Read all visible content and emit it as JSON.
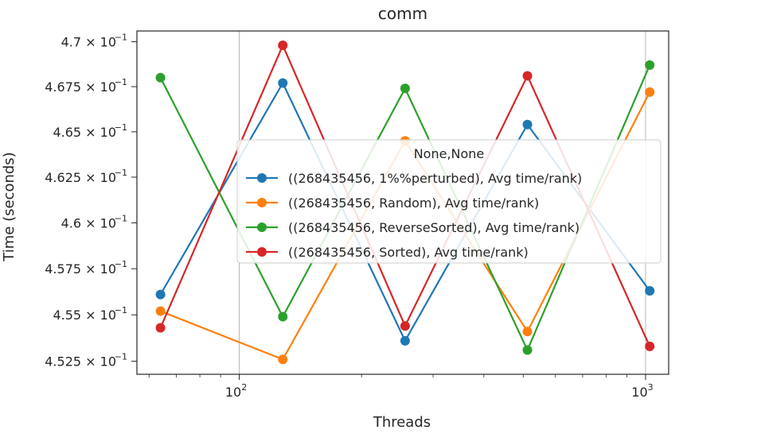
{
  "chart_data": {
    "type": "line",
    "title": "comm",
    "xlabel": "Threads",
    "ylabel": "Time (seconds)",
    "xscale": "log",
    "yscale": "log",
    "xlim": [
      56,
      1140
    ],
    "ylim": [
      0.4518,
      0.4706
    ],
    "x": [
      64,
      128,
      256,
      512,
      1024
    ],
    "x_ticks": [
      {
        "value": 100,
        "label": "10",
        "exp": "2"
      },
      {
        "value": 1000,
        "label": "10",
        "exp": "3"
      }
    ],
    "y_ticks": [
      {
        "value": 0.4525,
        "label": "4.525 × 10",
        "exp": "−1"
      },
      {
        "value": 0.455,
        "label": "4.55 × 10",
        "exp": "−1"
      },
      {
        "value": 0.4575,
        "label": "4.575 × 10",
        "exp": "−1"
      },
      {
        "value": 0.46,
        "label": "4.6 × 10",
        "exp": "−1"
      },
      {
        "value": 0.4625,
        "label": "4.625 × 10",
        "exp": "−1"
      },
      {
        "value": 0.465,
        "label": "4.65 × 10",
        "exp": "−1"
      },
      {
        "value": 0.4675,
        "label": "4.675 × 10",
        "exp": "−1"
      },
      {
        "value": 0.47,
        "label": "4.7 × 10",
        "exp": "−1"
      }
    ],
    "grid": "major-x",
    "legend": {
      "title": "None,None",
      "placement": "center-right"
    },
    "series": [
      {
        "name": "((268435456, 1%%perturbed), Avg time/rank)",
        "color": "#1f77b4",
        "values": [
          0.4561,
          0.4677,
          0.4536,
          0.4654,
          0.4563
        ]
      },
      {
        "name": "((268435456, Random), Avg time/rank)",
        "color": "#ff7f0e",
        "values": [
          0.4552,
          0.4526,
          0.4645,
          0.4541,
          0.4672
        ]
      },
      {
        "name": "((268435456, ReverseSorted), Avg time/rank)",
        "color": "#2ca02c",
        "values": [
          0.468,
          0.4549,
          0.4674,
          0.4531,
          0.4687
        ]
      },
      {
        "name": "((268435456, Sorted), Avg time/rank)",
        "color": "#d62728",
        "values": [
          0.4543,
          0.4698,
          0.4544,
          0.4681,
          0.4533
        ]
      }
    ]
  }
}
